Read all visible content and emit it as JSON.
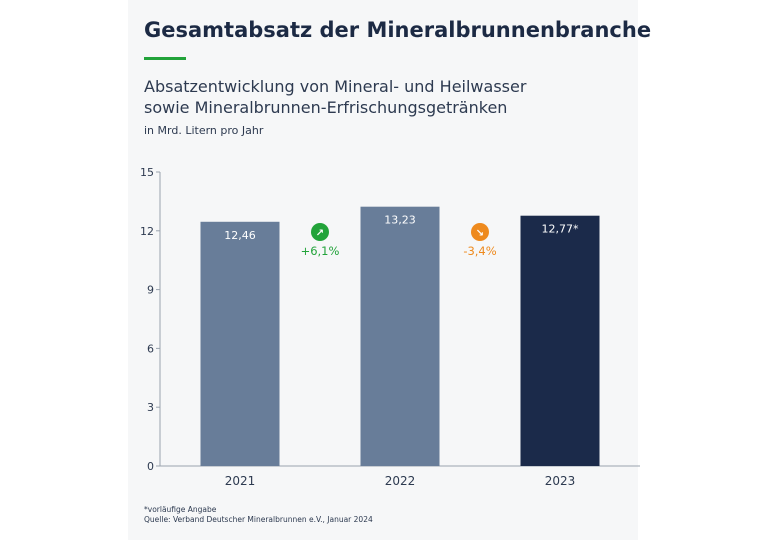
{
  "header": {
    "title": "Gesamtabsatz der Mineralbrunnenbranche",
    "subtitle_lines": [
      "Absatzentwicklung von Mineral- und Heilwasser",
      "sowie Mineralbrunnen-Erfrischungsgetränken"
    ],
    "unit": "in Mrd. Litern pro Jahr"
  },
  "colors": {
    "title": "#1c2a44",
    "accent_line": "#22a33a",
    "bar_default": "#687d99",
    "bar_highlight": "#1b2a4a",
    "increase": "#22a33a",
    "decrease": "#ee8a1e"
  },
  "chart_data": {
    "type": "bar",
    "categories": [
      "2021",
      "2022",
      "2023"
    ],
    "values": [
      12.46,
      13.23,
      12.77
    ],
    "value_labels": [
      "12,46",
      "13,23",
      "12,77*"
    ],
    "highlight_index": 2,
    "ylim": [
      0,
      15
    ],
    "yticks": [
      "0",
      "3",
      "6",
      "9",
      "12",
      "15"
    ],
    "ytick_values": [
      0,
      3,
      6,
      9,
      12,
      15
    ],
    "grid": false,
    "changes": [
      {
        "between": [
          "2021",
          "2022"
        ],
        "label": "+6,1%",
        "direction": "up",
        "icon": "arrow-up-right-icon"
      },
      {
        "between": [
          "2022",
          "2023"
        ],
        "label": "-3,4%",
        "direction": "down",
        "icon": "arrow-down-right-icon"
      }
    ]
  },
  "footnotes": {
    "note": "*vorläufige Angabe",
    "source": "Quelle: Verband Deutscher Mineralbrunnen e.V., Januar 2024"
  }
}
